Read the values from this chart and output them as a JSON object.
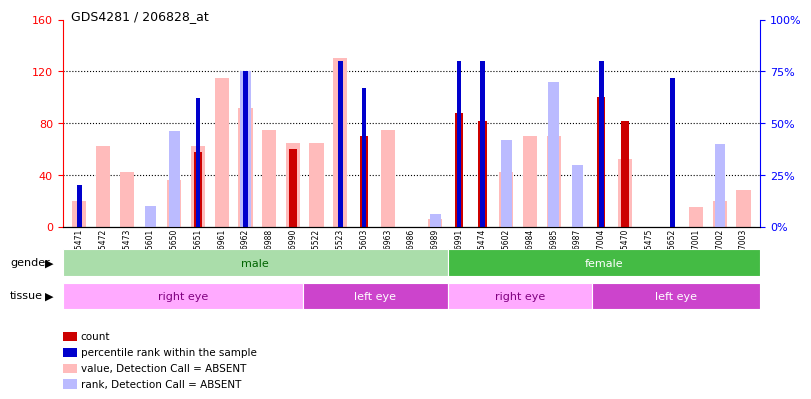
{
  "title": "GDS4281 / 206828_at",
  "samples": [
    "GSM685471",
    "GSM685472",
    "GSM685473",
    "GSM685601",
    "GSM685650",
    "GSM685651",
    "GSM686961",
    "GSM686962",
    "GSM686988",
    "GSM686990",
    "GSM685522",
    "GSM685523",
    "GSM685603",
    "GSM686963",
    "GSM686986",
    "GSM686989",
    "GSM686991",
    "GSM685474",
    "GSM685602",
    "GSM686984",
    "GSM686985",
    "GSM686987",
    "GSM687004",
    "GSM685470",
    "GSM685475",
    "GSM685652",
    "GSM687001",
    "GSM687002",
    "GSM687003"
  ],
  "count": [
    0,
    0,
    0,
    0,
    0,
    58,
    0,
    0,
    0,
    60,
    0,
    0,
    70,
    0,
    0,
    0,
    88,
    82,
    0,
    0,
    0,
    0,
    100,
    82,
    0,
    0,
    0,
    0,
    0
  ],
  "percentile": [
    20,
    0,
    0,
    0,
    0,
    62,
    0,
    75,
    0,
    0,
    0,
    80,
    67,
    0,
    0,
    0,
    80,
    80,
    0,
    0,
    0,
    0,
    80,
    0,
    0,
    72,
    0,
    0,
    0
  ],
  "value_absent": [
    20,
    62,
    42,
    0,
    36,
    62,
    115,
    92,
    75,
    65,
    65,
    130,
    0,
    75,
    0,
    6,
    0,
    0,
    42,
    70,
    70,
    0,
    0,
    52,
    0,
    0,
    15,
    20,
    28
  ],
  "rank_absent": [
    0,
    0,
    0,
    10,
    46,
    0,
    0,
    75,
    0,
    0,
    0,
    0,
    0,
    0,
    0,
    6,
    0,
    0,
    42,
    0,
    70,
    30,
    0,
    0,
    0,
    0,
    0,
    40,
    0
  ],
  "gender_groups": [
    {
      "label": "male",
      "start": 0,
      "end": 16,
      "color": "#aaddaa"
    },
    {
      "label": "female",
      "start": 16,
      "end": 29,
      "color": "#44bb44"
    }
  ],
  "tissue_groups": [
    {
      "label": "right eye",
      "start": 0,
      "end": 10,
      "color": "#ffaaff"
    },
    {
      "label": "left eye",
      "start": 10,
      "end": 16,
      "color": "#cc44cc"
    },
    {
      "label": "right eye",
      "start": 16,
      "end": 22,
      "color": "#ffaaff"
    },
    {
      "label": "left eye",
      "start": 22,
      "end": 29,
      "color": "#cc44cc"
    }
  ],
  "ylim_left": [
    0,
    160
  ],
  "ylim_right": [
    0,
    100
  ],
  "yticks_left": [
    0,
    40,
    80,
    120,
    160
  ],
  "yticks_right": [
    0,
    25,
    50,
    75,
    100
  ],
  "bar_color_count": "#cc0000",
  "bar_color_percentile": "#0000cc",
  "bar_color_value_absent": "#ffbbbb",
  "bar_color_rank_absent": "#bbbbff",
  "bg_color": "#ffffff",
  "legend_items": [
    {
      "label": "count",
      "color": "#cc0000"
    },
    {
      "label": "percentile rank within the sample",
      "color": "#0000cc"
    },
    {
      "label": "value, Detection Call = ABSENT",
      "color": "#ffbbbb"
    },
    {
      "label": "rank, Detection Call = ABSENT",
      "color": "#bbbbff"
    }
  ]
}
